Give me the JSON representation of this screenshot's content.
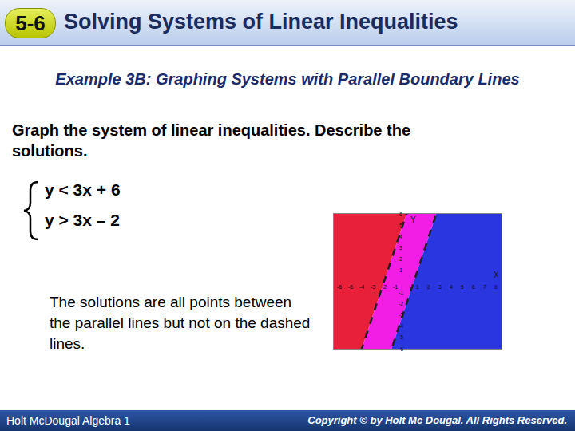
{
  "header": {
    "lesson": "5-6",
    "title": "Solving Systems of Linear Inequalities"
  },
  "example": "Example 3B: Graphing Systems with Parallel Boundary Lines",
  "prompt": "Graph the system of linear inequalities. Describe the solutions.",
  "system": [
    "y < 3x + 6",
    "y > 3x – 2"
  ],
  "answer": "The solutions are all points between the parallel lines but not on the dashed lines.",
  "footer": {
    "left": "Holt McDougal Algebra 1",
    "right": "Copyright © by Holt Mc Dougal. All Rights Reserved."
  },
  "chart_data": {
    "type": "inequality",
    "x_label": "X",
    "y_label": "Y",
    "boundaries": [
      {
        "slope": 3,
        "intercept": 6,
        "relation": "<"
      },
      {
        "slope": 3,
        "intercept": -2,
        "relation": ">"
      }
    ],
    "line_style": "dashed",
    "colors": [
      "#e8203a",
      "#f21ee6",
      "#2a36e0"
    ],
    "xlim": [
      -6.5,
      8.5
    ],
    "ylim": [
      -6,
      6
    ],
    "xticks": [
      -6,
      -5,
      -4,
      -3,
      -2,
      -1,
      1,
      2,
      3,
      4,
      5,
      6,
      7,
      8
    ],
    "yticks": [
      -6,
      -5,
      -4,
      -3,
      -2,
      -1,
      1,
      2,
      3,
      4,
      5,
      6
    ],
    "grid": false
  }
}
